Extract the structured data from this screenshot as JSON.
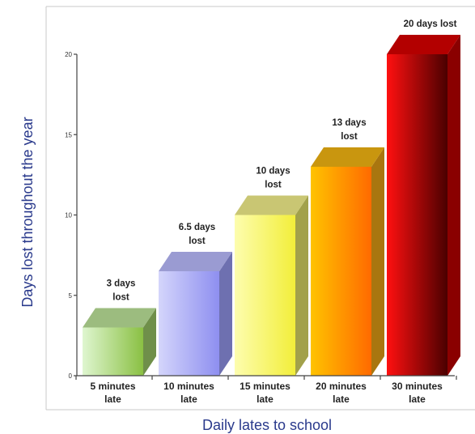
{
  "chart_data": {
    "type": "bar",
    "xlabel": "Daily lates to school",
    "ylabel": "Days lost throughout the year",
    "ylim": [
      0,
      20
    ],
    "yticks": [
      0,
      5,
      10,
      15,
      20
    ],
    "grid": false,
    "style": "3d",
    "categories": [
      [
        "5 minutes",
        "late"
      ],
      [
        "10 minutes",
        "late"
      ],
      [
        "15 minutes",
        "late"
      ],
      [
        "20 minutes",
        "late"
      ],
      [
        "30 minutes",
        "late"
      ]
    ],
    "values": [
      3,
      6.5,
      10,
      13,
      20
    ],
    "data_labels": [
      [
        "3 days",
        "lost"
      ],
      [
        "6.5 days",
        "lost"
      ],
      [
        "10 days",
        "lost"
      ],
      [
        "13 days",
        "lost"
      ],
      [
        "20 days lost"
      ]
    ],
    "bar_colors": [
      {
        "light": "#dff6d0",
        "dark": "#8ac043",
        "side": "#6f8f4a",
        "top": "#9cbc7f"
      },
      {
        "light": "#d4d5fb",
        "dark": "#8e8ff0",
        "side": "#6e70b0",
        "top": "#9a9bd2"
      },
      {
        "light": "#fdfdae",
        "dark": "#f2ee3a",
        "side": "#a2a14a",
        "top": "#c9c673"
      },
      {
        "light": "#ffc300",
        "dark": "#ff6a00",
        "side": "#a9760f",
        "top": "#c9960f"
      },
      {
        "light": "#ff1010",
        "dark": "#4a0000",
        "side": "#8a0000",
        "top": "#b30000"
      }
    ]
  }
}
